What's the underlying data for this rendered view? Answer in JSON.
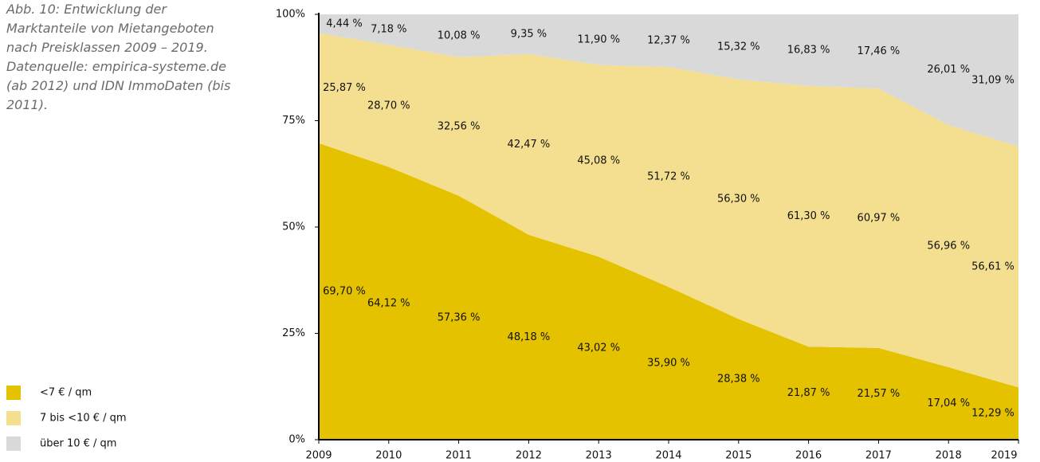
{
  "chart_data": {
    "type": "stacked_area",
    "title": "Abb. 10: Entwicklung der Marktanteile von Mietangeboten nach Preisklassen 2009 – 2019. Datenquelle: empirica-systeme.de (ab 2012) und IDN ImmoDaten (bis 2011).",
    "x": [
      2009,
      2010,
      2011,
      2012,
      2013,
      2014,
      2015,
      2016,
      2017,
      2018,
      2019
    ],
    "xlim": [
      2009,
      2019
    ],
    "xticks": [
      2009,
      2010,
      2011,
      2012,
      2013,
      2014,
      2015,
      2016,
      2017,
      2018,
      2019
    ],
    "ylim": [
      0,
      100
    ],
    "yticks": [
      {
        "value": 0,
        "label": "0%"
      },
      {
        "value": 25,
        "label": "25%"
      },
      {
        "value": 50,
        "label": "50%"
      },
      {
        "value": 75,
        "label": "75%"
      },
      {
        "value": 100,
        "label": "100%"
      }
    ],
    "grid": false,
    "legend": "lower left",
    "series": [
      {
        "name": "<7 € / qm",
        "color": "#e5c200",
        "values": [
          69.7,
          64.12,
          57.36,
          48.18,
          43.02,
          35.9,
          28.38,
          21.87,
          21.57,
          17.04,
          12.29
        ],
        "value_labels": [
          "69,70 %",
          "64,12 %",
          "57,36 %",
          "48,18 %",
          "43,02 %",
          "35,90 %",
          "28,38 %",
          "21,87 %",
          "21,57 %",
          "17,04 %",
          "12,29 %"
        ]
      },
      {
        "name": "7 bis <10 € / qm",
        "color": "#f3df8f",
        "values": [
          25.87,
          28.7,
          32.56,
          42.47,
          45.08,
          51.72,
          56.3,
          61.3,
          60.97,
          56.96,
          56.61
        ],
        "value_labels": [
          "25,87 %",
          "28,70 %",
          "32,56 %",
          "42,47 %",
          "45,08 %",
          "51,72 %",
          "56,30 %",
          "61,30 %",
          "60,97 %",
          "56,96 %",
          "56,61 %"
        ]
      },
      {
        "name": "über 10 € / qm",
        "color": "#d9d9d9",
        "values": [
          4.44,
          7.18,
          10.08,
          9.35,
          11.9,
          12.37,
          15.32,
          16.83,
          17.46,
          26.01,
          31.09
        ],
        "value_labels": [
          "4,44 %",
          "7,18 %",
          "10,08 %",
          "9,35 %",
          "11,90 %",
          "12,37 %",
          "15,32 %",
          "16,83 %",
          "17,46 %",
          "26,01 %",
          "31,09 %"
        ]
      }
    ]
  }
}
